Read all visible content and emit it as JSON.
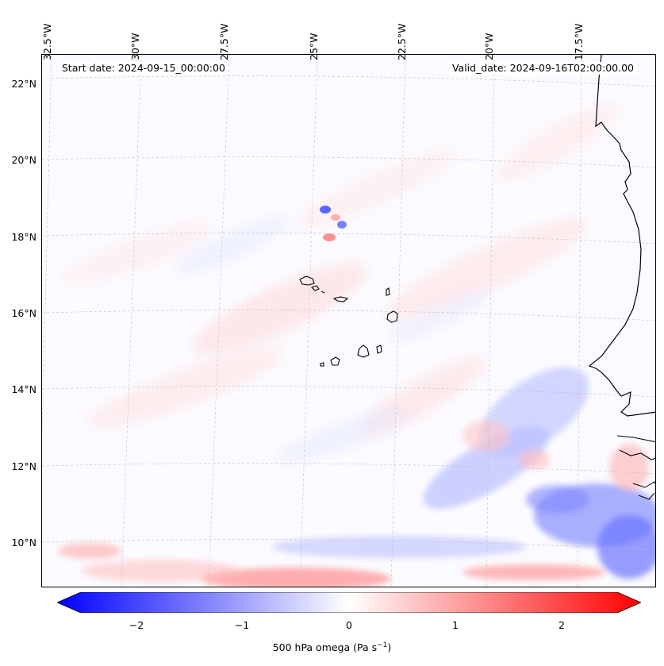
{
  "header": {
    "start_date": "Start date: 2024-09-15_00:00:00",
    "valid_date": "Valid_date: 2024-09-16T02:00:00.00"
  },
  "axes": {
    "lon_labels": [
      "32.5°W",
      "30°W",
      "27.5°W",
      "25°W",
      "22.5°W",
      "20°W",
      "17.5°W"
    ],
    "lat_labels": [
      "22°N",
      "20°N",
      "18°N",
      "16°N",
      "14°N",
      "12°N",
      "10°N"
    ]
  },
  "colorbar": {
    "ticks": [
      "−2",
      "−1",
      "0",
      "1",
      "2"
    ],
    "label": "500 hPa omega (Pa s",
    "label_sup": "−1",
    "label_end": ")",
    "min_color": "#0000ff",
    "mid_color": "#ffffff",
    "max_color": "#ff0000"
  },
  "map": {
    "lon_range": [
      -32.5,
      -15.0
    ],
    "lat_range": [
      9.0,
      22.5
    ],
    "coast_color": "#000000",
    "grid": true
  }
}
